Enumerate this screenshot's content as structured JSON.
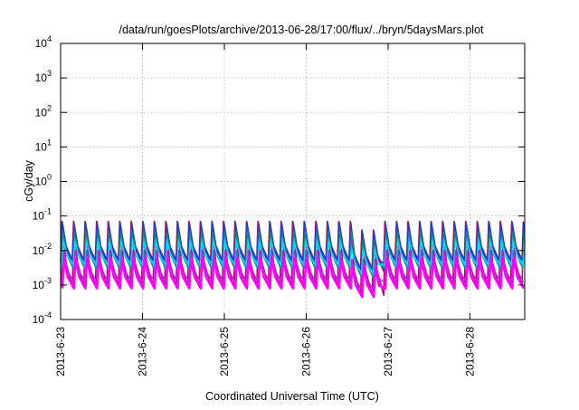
{
  "chart_data": {
    "type": "line",
    "title": "/data/run/goesPlots/archive/2013-06-28/17:00/flux/../bryn/5daysMars.plot",
    "xlabel": "Coordinated Universal Time (UTC)",
    "ylabel": "cGy/day",
    "yscale": "log",
    "ylim": [
      0.0001,
      10000
    ],
    "xlim": [
      "2013-06-23",
      "2013-06-28 16:00"
    ],
    "grid": true,
    "legend": "none",
    "x_ticks": [
      "2013-6-23",
      "2013-6-24",
      "2013-6-25",
      "2013-6-26",
      "2013-6-27",
      "2013-6-28"
    ],
    "y_ticks": [
      {
        "value": 0.0001,
        "base": "10",
        "exp": "-4"
      },
      {
        "value": 0.001,
        "base": "10",
        "exp": "-3"
      },
      {
        "value": 0.01,
        "base": "10",
        "exp": "-2"
      },
      {
        "value": 0.1,
        "base": "10",
        "exp": "-1"
      },
      {
        "value": 1,
        "base": "10",
        "exp": "0"
      },
      {
        "value": 10,
        "base": "10",
        "exp": "1"
      },
      {
        "value": 100,
        "base": "10",
        "exp": "2"
      },
      {
        "value": 1000,
        "base": "10",
        "exp": "3"
      },
      {
        "value": 10000,
        "base": "10",
        "exp": "4"
      }
    ],
    "oscillation": {
      "cycles_per_day": 7.1,
      "note_dip_day_range": [
        3.55,
        3.95
      ]
    },
    "series": [
      {
        "color": "#e2001a",
        "peak": 0.07,
        "trough": 0.0045,
        "width": 1.6
      },
      {
        "color": "#c0007a",
        "peak": 0.06,
        "trough": 0.0009,
        "width": 1.6
      },
      {
        "color": "#1c3fd6",
        "peak": 0.065,
        "trough": 0.005,
        "width": 1.6
      },
      {
        "color": "#3a3ac0",
        "peak": 0.05,
        "trough": 0.004,
        "width": 1.4
      },
      {
        "color": "#0a8a8a",
        "peak": 0.035,
        "trough": 0.003,
        "width": 1.4
      },
      {
        "color": "#1fb5c0",
        "peak": 0.022,
        "trough": 0.0035,
        "width": 1.4
      },
      {
        "color": "#00e0f0",
        "peak": 0.018,
        "trough": 0.004,
        "width": 1.4
      },
      {
        "color": "#9a3ad0",
        "peak": 0.01,
        "trough": 0.0012,
        "width": 1.4
      },
      {
        "color": "#ff00ff",
        "peak": 0.006,
        "trough": 0.0008,
        "width": 2.6
      }
    ]
  }
}
